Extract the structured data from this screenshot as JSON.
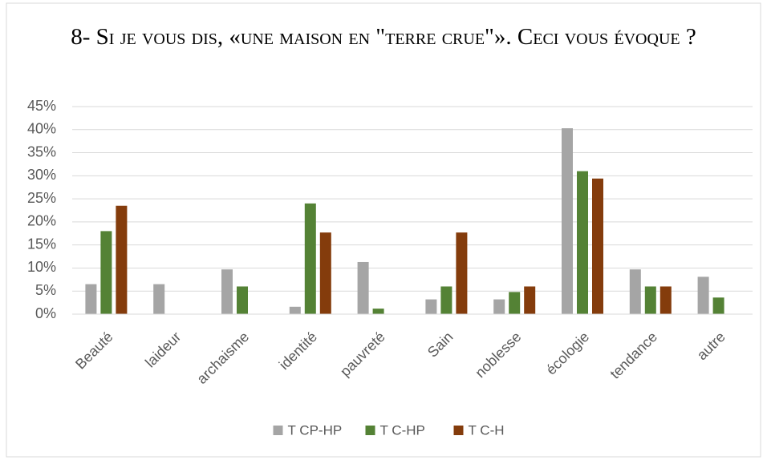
{
  "chart_data": {
    "type": "bar",
    "title": "8- Si je vous dis, «une maison en \"terre crue\"». Ceci vous évoque ?",
    "categories": [
      "Beauté",
      "laideur",
      "archaisme",
      "identité",
      "pauvreté",
      "Sain",
      "noblesse",
      "écologie",
      "tendance",
      "autre"
    ],
    "series": [
      {
        "name": "T CP-HP",
        "color": "#a5a5a5",
        "values": [
          6.5,
          6.5,
          9.7,
          1.6,
          11.3,
          3.2,
          3.2,
          40.3,
          9.7,
          8.1
        ]
      },
      {
        "name": "T C-HP",
        "color": "#548235",
        "values": [
          18,
          0,
          6,
          24,
          1.2,
          6,
          4.8,
          31,
          6,
          3.6
        ]
      },
      {
        "name": "T C-H",
        "color": "#843c0c",
        "values": [
          23.5,
          0,
          0,
          17.7,
          0,
          17.7,
          6,
          29.4,
          6,
          0
        ]
      }
    ],
    "ylim": [
      0,
      45
    ],
    "yticks": [
      {
        "value": 0,
        "label": "0%"
      },
      {
        "value": 5,
        "label": "5%"
      },
      {
        "value": 10,
        "label": "10%"
      },
      {
        "value": 15,
        "label": "15%"
      },
      {
        "value": 20,
        "label": "20%"
      },
      {
        "value": 25,
        "label": "25%"
      },
      {
        "value": 30,
        "label": "30%"
      },
      {
        "value": 35,
        "label": "35%"
      },
      {
        "value": 40,
        "label": "40%"
      },
      {
        "value": 45,
        "label": "45%"
      }
    ],
    "grid": true,
    "legend": "bottom"
  }
}
